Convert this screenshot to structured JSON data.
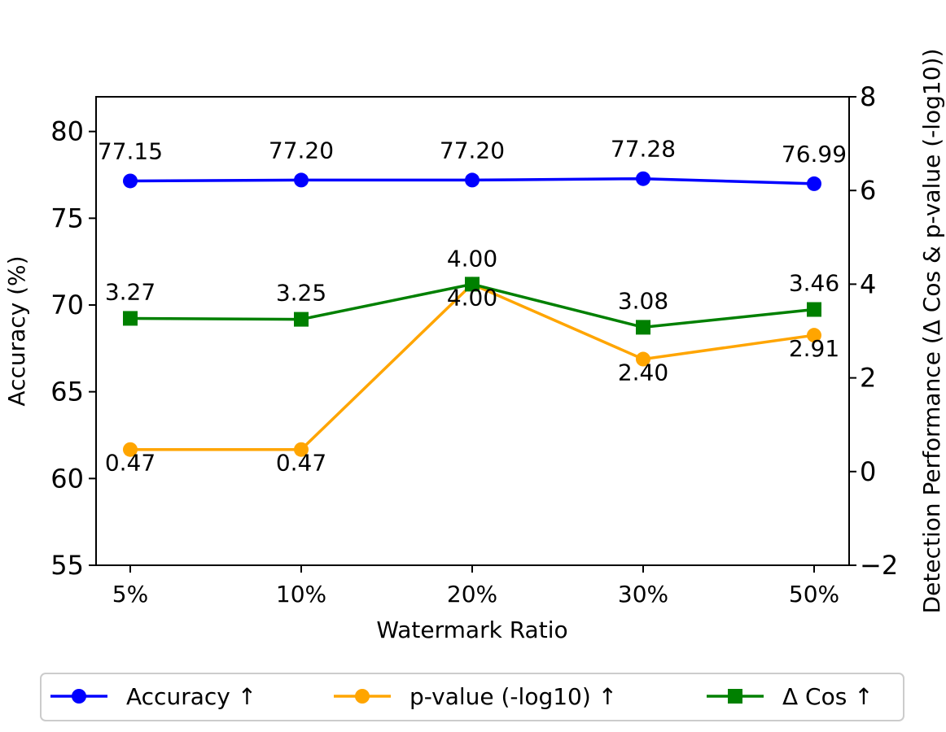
{
  "chart_data": {
    "type": "line",
    "xlabel": "Watermark Ratio",
    "ylabel_left": "Accuracy (%)",
    "ylabel_right": "Detection Performance (Δ Cos & p-value (-log10))",
    "categories": [
      "5%",
      "10%",
      "20%",
      "30%",
      "50%"
    ],
    "ylim_left": [
      55,
      82
    ],
    "ylim_right": [
      -2,
      8
    ],
    "yticks_left": [
      "55",
      "60",
      "65",
      "70",
      "75",
      "80"
    ],
    "yticks_right": [
      "−2",
      "0",
      "2",
      "4",
      "6",
      "8"
    ],
    "grid": false,
    "legend_position": "bottom",
    "series": [
      {
        "name": "Accuracy ↑",
        "axis": "left",
        "color": "#0000ff",
        "marker": "circle",
        "values": [
          77.15,
          77.2,
          77.2,
          77.28,
          76.99
        ],
        "labels": [
          "77.15",
          "77.20",
          "77.20",
          "77.28",
          "76.99"
        ]
      },
      {
        "name": "p-value (-log10) ↑",
        "axis": "right",
        "color": "#ffa500",
        "marker": "circle",
        "values": [
          0.47,
          0.47,
          4.0,
          2.4,
          2.91
        ],
        "labels": [
          "0.47",
          "0.47",
          "4.00",
          "2.40",
          "2.91"
        ]
      },
      {
        "name": "Δ Cos ↑",
        "axis": "right",
        "color": "#008000",
        "marker": "square",
        "values": [
          3.27,
          3.25,
          4.0,
          3.08,
          3.46
        ],
        "labels": [
          "3.27",
          "3.25",
          "4.00",
          "3.08",
          "3.46"
        ]
      }
    ]
  }
}
